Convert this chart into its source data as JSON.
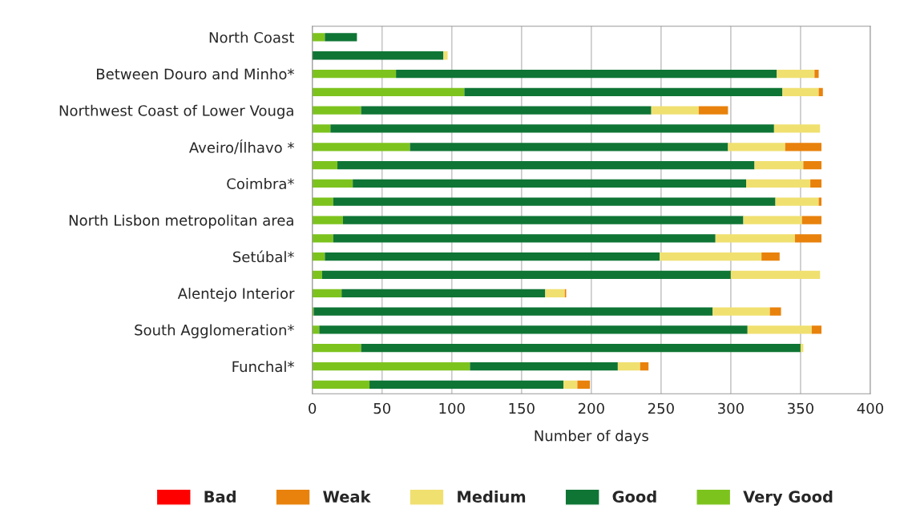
{
  "chart_data": {
    "type": "bar",
    "orientation": "horizontal",
    "stacked": true,
    "xlabel": "Number of days",
    "categories": [
      "North Coast",
      null,
      "Between Douro and Minho*",
      null,
      "Northwest Coast of Lower Vouga",
      null,
      "Aveiro/Ílhavo *",
      null,
      "Coimbra*",
      null,
      "North Lisbon metropolitan area",
      null,
      "Setúbal*",
      null,
      "Alentejo Interior",
      null,
      "South Agglomeration*",
      null,
      "Funchal*",
      null
    ],
    "series": [
      {
        "name": "Very Good",
        "color": "#7dc31e",
        "values": [
          9,
          0,
          60,
          109,
          35,
          13,
          70,
          18,
          29,
          15,
          22,
          15,
          9,
          7,
          21,
          1,
          5,
          35,
          113,
          41
        ]
      },
      {
        "name": "Good",
        "color": "#0f7535",
        "values": [
          23,
          94,
          273,
          228,
          208,
          318,
          228,
          299,
          282,
          317,
          287,
          274,
          240,
          293,
          146,
          286,
          307,
          315,
          106,
          139
        ]
      },
      {
        "name": "Medium",
        "color": "#f0e070",
        "values": [
          0,
          3,
          27,
          26,
          34,
          33,
          41,
          35,
          46,
          31,
          42,
          57,
          73,
          64,
          14,
          41,
          46,
          2,
          16,
          10
        ]
      },
      {
        "name": "Weak",
        "color": "#e8820c",
        "values": [
          0,
          0,
          3,
          3,
          21,
          0,
          26,
          13,
          8,
          2,
          14,
          19,
          13,
          0,
          1,
          8,
          7,
          0,
          6,
          9
        ]
      },
      {
        "name": "Bad",
        "color": "#ff0000",
        "values": [
          0,
          0,
          0,
          0,
          0,
          0,
          0,
          0,
          0,
          0,
          0,
          0,
          0,
          0,
          0,
          0,
          0,
          0,
          0,
          0
        ]
      }
    ],
    "xlim": [
      0,
      400
    ],
    "xticks": [
      0,
      50,
      100,
      150,
      200,
      250,
      300,
      350,
      400
    ],
    "grid": "x",
    "legend": "bottom"
  }
}
